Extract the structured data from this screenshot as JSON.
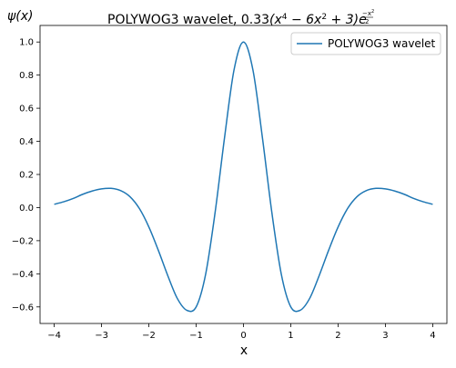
{
  "chart_data": {
    "type": "line",
    "title": {
      "text": "POLYWOG3 wavelet, 0.33",
      "formula_base": "(x",
      "formula_exp1": "4",
      "formula_mid": " − 6x",
      "formula_exp2": "2",
      "formula_tail": " + 3)e",
      "formula_exp_num": "−x",
      "formula_exp_num_sup": "2",
      "formula_exp_den": "2"
    },
    "xlabel": "x",
    "ylabel": "ψ(x)",
    "xlim": [
      -4.3,
      4.3
    ],
    "ylim": [
      -0.7,
      1.1
    ],
    "xticks": [
      -4,
      -3,
      -2,
      -1,
      0,
      1,
      2,
      3,
      4
    ],
    "xtick_labels": [
      "−4",
      "−3",
      "−2",
      "−1",
      "0",
      "1",
      "2",
      "3",
      "4"
    ],
    "yticks": [
      -0.6,
      -0.4,
      -0.2,
      0.0,
      0.2,
      0.4,
      0.6,
      0.8,
      1.0
    ],
    "ytick_labels": [
      "−0.6",
      "−0.4",
      "−0.2",
      "0.0",
      "0.2",
      "0.4",
      "0.6",
      "0.8",
      "1.0"
    ],
    "grid": false,
    "legend_position": "top-right",
    "series": [
      {
        "name": "POLYWOG3 wavelet",
        "color": "#1f77b4",
        "x": [
          -4.0,
          -3.8,
          -3.6,
          -3.4,
          -3.2,
          -3.0,
          -2.8,
          -2.6,
          -2.4,
          -2.2,
          -2.0,
          -1.8,
          -1.6,
          -1.4,
          -1.2,
          -1.0,
          -0.8,
          -0.6,
          -0.4,
          -0.2,
          0.0,
          0.2,
          0.4,
          0.6,
          0.8,
          1.0,
          1.2,
          1.4,
          1.6,
          1.8,
          2.0,
          2.2,
          2.4,
          2.6,
          2.8,
          3.0,
          3.2,
          3.4,
          3.6,
          3.8,
          4.0
        ],
        "y": [
          0.02,
          0.035,
          0.055,
          0.08,
          0.1,
          0.113,
          0.116,
          0.103,
          0.066,
          -0.006,
          -0.117,
          -0.258,
          -0.411,
          -0.548,
          -0.62,
          -0.6,
          -0.403,
          -0.03,
          0.423,
          0.831,
          1.0,
          0.831,
          0.423,
          -0.03,
          -0.403,
          -0.6,
          -0.62,
          -0.548,
          -0.411,
          -0.258,
          -0.117,
          -0.006,
          0.066,
          0.103,
          0.116,
          0.113,
          0.1,
          0.08,
          0.055,
          0.035,
          0.02
        ]
      }
    ]
  }
}
